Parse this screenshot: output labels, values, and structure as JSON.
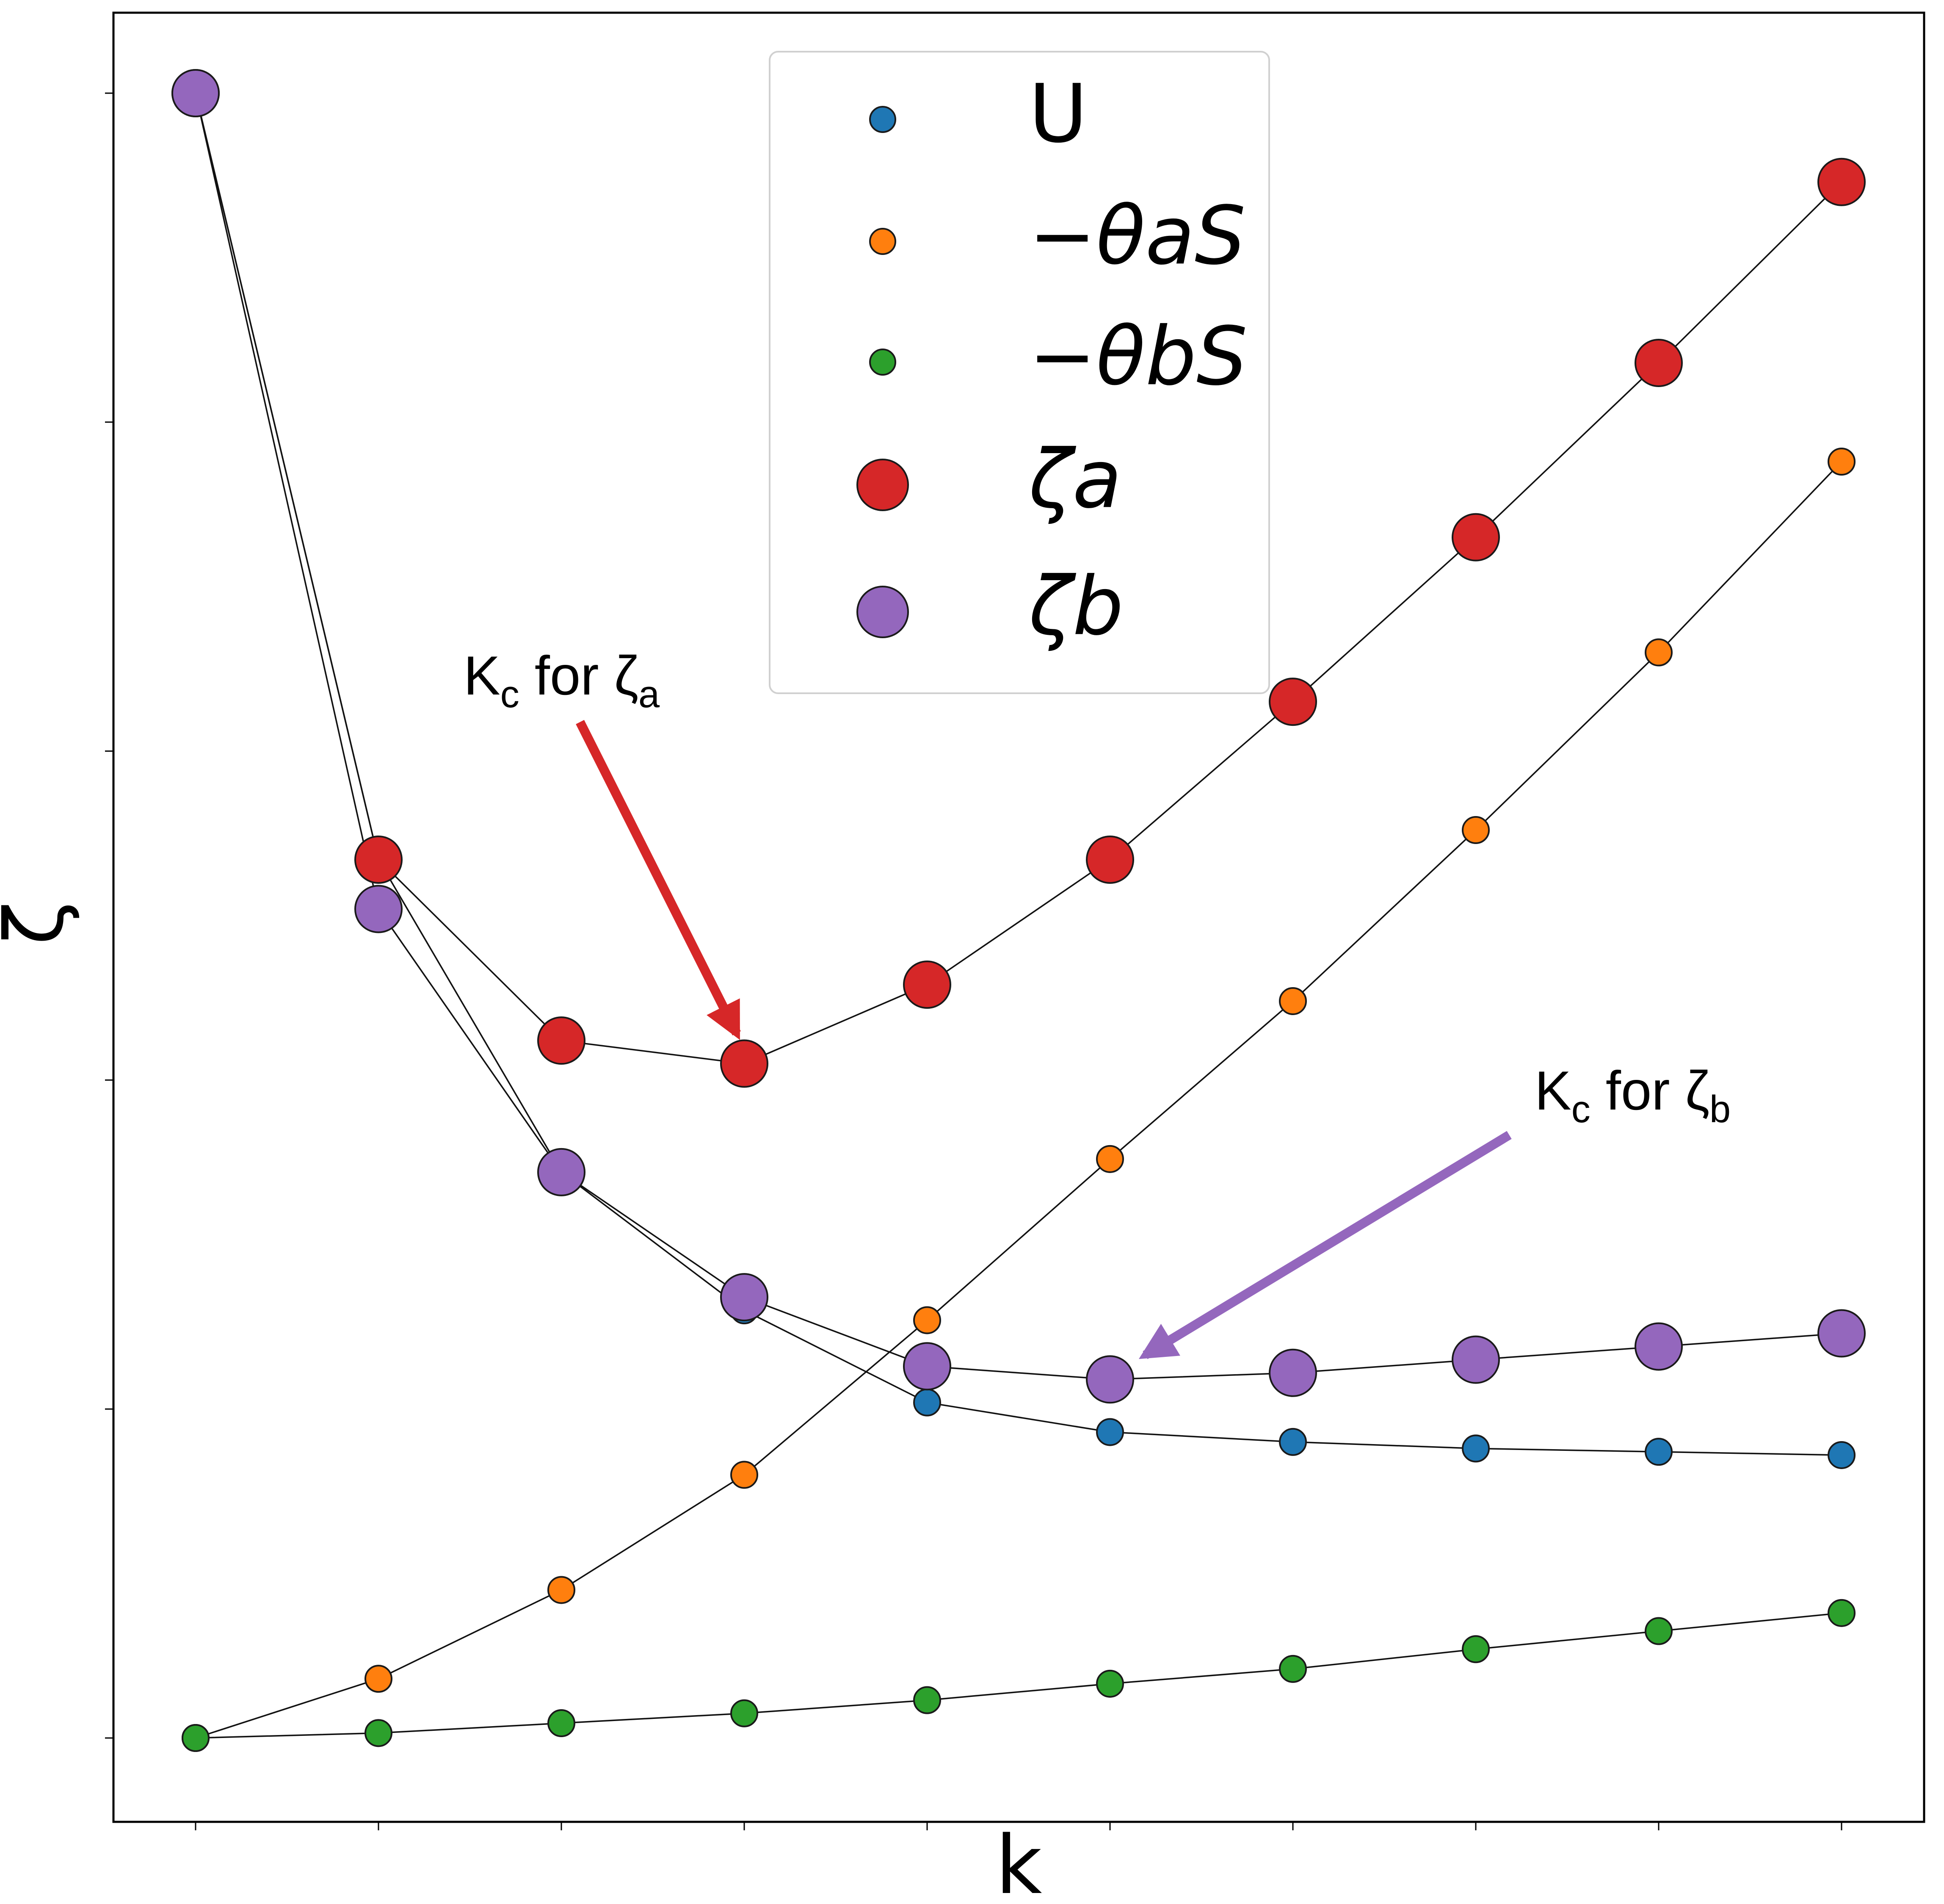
{
  "chart_data": {
    "type": "line",
    "title": "",
    "xlabel": "k",
    "ylabel": "ζ",
    "x_ticks": 10,
    "y_ticks": 6,
    "tick_labels_shown": false,
    "grid": false,
    "legend_position": "top-center",
    "x": [
      1,
      2,
      3,
      4,
      5,
      6,
      7,
      8,
      9,
      10
    ],
    "ylim": [
      -0.25,
      5.25
    ],
    "xlim": [
      0.55,
      10.45
    ],
    "series": [
      {
        "name": "U",
        "latex": "U",
        "color": "#1f77b4",
        "marker_size": "small",
        "values": [
          5.0,
          2.67,
          1.72,
          1.3,
          1.02,
          0.93,
          0.9,
          0.88,
          0.87,
          0.86
        ]
      },
      {
        "name": "−θaS",
        "latex": "-θ_a S",
        "color": "#ff7f0e",
        "marker_size": "small",
        "values": [
          0.0,
          0.18,
          0.45,
          0.8,
          1.27,
          1.76,
          2.24,
          2.76,
          3.3,
          3.88
        ]
      },
      {
        "name": "−θbS",
        "latex": "-θ_b S",
        "color": "#2ca02c",
        "marker_size": "small",
        "values": [
          0.0,
          0.015,
          0.045,
          0.075,
          0.115,
          0.165,
          0.21,
          0.27,
          0.325,
          0.38
        ]
      },
      {
        "name": "ζa",
        "latex": "ζ_a",
        "color": "#d62728",
        "marker_size": "large",
        "values": [
          5.0,
          2.67,
          2.12,
          2.05,
          2.29,
          2.67,
          3.15,
          3.65,
          4.18,
          4.73
        ]
      },
      {
        "name": "ζb",
        "latex": "ζ_b",
        "color": "#9467bd",
        "marker_size": "large",
        "values": [
          5.0,
          2.52,
          1.72,
          1.34,
          1.13,
          1.09,
          1.11,
          1.15,
          1.19,
          1.23
        ]
      }
    ],
    "annotations": [
      {
        "text": "Kc for ζa",
        "main": "K",
        "sub1": "c",
        "mid": " for ζ",
        "sub2": "a",
        "color": "#d62728",
        "target_x": 4,
        "target_series": "ζa"
      },
      {
        "text": "Kc for ζb",
        "main": "K",
        "sub1": "c",
        "mid": " for ζ",
        "sub2": "b",
        "color": "#9467bd",
        "target_x": 6,
        "target_series": "ζb"
      }
    ]
  }
}
